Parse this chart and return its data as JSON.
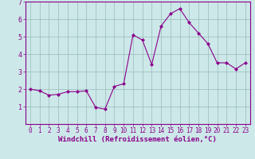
{
  "x": [
    0,
    1,
    2,
    3,
    4,
    5,
    6,
    7,
    8,
    9,
    10,
    11,
    12,
    13,
    14,
    15,
    16,
    17,
    18,
    19,
    20,
    21,
    22,
    23
  ],
  "y": [
    2.0,
    1.9,
    1.65,
    1.7,
    1.85,
    1.85,
    1.9,
    0.95,
    0.85,
    2.15,
    2.3,
    5.1,
    4.8,
    3.4,
    5.6,
    6.3,
    6.6,
    5.8,
    5.2,
    4.6,
    3.5,
    3.5,
    3.15,
    3.5
  ],
  "line_color": "#8B008B",
  "marker": "D",
  "marker_size": 2.0,
  "bg_color": "#cce8e8",
  "grid_color": "#99bbbb",
  "xlabel": "Windchill (Refroidissement éolien,°C)",
  "xlabel_color": "#8B008B",
  "tick_color": "#8B008B",
  "ylim": [
    0,
    7
  ],
  "xlim": [
    -0.5,
    23.5
  ],
  "yticks": [
    1,
    2,
    3,
    4,
    5,
    6,
    7
  ],
  "xticks": [
    0,
    1,
    2,
    3,
    4,
    5,
    6,
    7,
    8,
    9,
    10,
    11,
    12,
    13,
    14,
    15,
    16,
    17,
    18,
    19,
    20,
    21,
    22,
    23
  ],
  "spine_color": "#8B008B",
  "tick_fontsize": 5.5,
  "xlabel_fontsize": 6.5
}
